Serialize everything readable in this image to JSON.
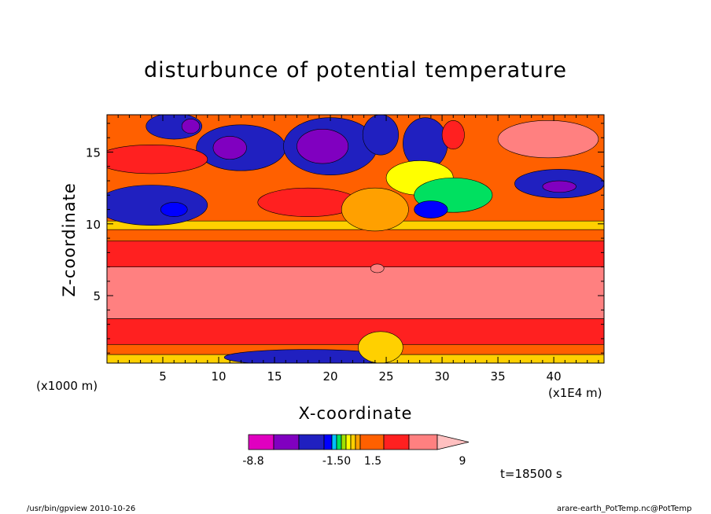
{
  "chart_data": {
    "type": "heatmap",
    "title": "disturbunce of potential temperature",
    "xlabel": "X-coordinate",
    "ylabel": "Z-coordinate",
    "x_unit_label": "(x1000 m)",
    "x_scale_label": "(x1E4 m)",
    "xlim": [
      0,
      44.5
    ],
    "ylim": [
      0.3,
      17.6
    ],
    "xticks": [
      5,
      10,
      15,
      20,
      25,
      30,
      35,
      40
    ],
    "yticks": [
      5,
      10,
      15
    ],
    "time_label": "t=18500 s",
    "colorbar": {
      "labels": [
        "-8.8",
        "-1.50",
        "1.5",
        "9"
      ],
      "colors": [
        "#e000c0",
        "#8000c0",
        "#2020c0",
        "#0000ff",
        "#00c0ff",
        "#00e060",
        "#a0e000",
        "#ffff00",
        "#ffd000",
        "#ffa000",
        "#ff6000",
        "#ff2020",
        "#ff8080",
        "#ffc0c0"
      ]
    },
    "bands": [
      {
        "z0": 0.3,
        "z1": 0.9,
        "value": 1.0
      },
      {
        "z0": 0.9,
        "z1": 1.6,
        "value": 2.5
      },
      {
        "z0": 1.6,
        "z1": 3.4,
        "value": 4.5
      },
      {
        "z0": 3.4,
        "z1": 7.0,
        "value": 8.0
      },
      {
        "z0": 7.0,
        "z1": 8.8,
        "value": 5.0
      },
      {
        "z0": 8.8,
        "z1": 9.6,
        "value": 2.5
      },
      {
        "z0": 9.6,
        "z1": 10.2,
        "value": 1.0
      }
    ],
    "features": [
      {
        "x": 4,
        "z": 11.3,
        "rx": 5,
        "ry": 1.4,
        "value": -4.0
      },
      {
        "x": 6,
        "z": 11.0,
        "rx": 1.2,
        "ry": 0.5,
        "value": -2.0
      },
      {
        "x": 6,
        "z": 16.8,
        "rx": 2.5,
        "ry": 0.9,
        "value": -3.0
      },
      {
        "x": 7.5,
        "z": 16.8,
        "rx": 0.8,
        "ry": 0.5,
        "value": -7.0
      },
      {
        "x": 12,
        "z": 15.3,
        "rx": 4.0,
        "ry": 1.6,
        "value": -3.5
      },
      {
        "x": 11,
        "z": 15.3,
        "rx": 1.5,
        "ry": 0.8,
        "value": -7.0
      },
      {
        "x": 20,
        "z": 15.4,
        "rx": 4.2,
        "ry": 2.0,
        "value": -3.5
      },
      {
        "x": 19.3,
        "z": 15.4,
        "rx": 2.3,
        "ry": 1.2,
        "value": -7.0
      },
      {
        "x": 24.5,
        "z": 16.2,
        "rx": 1.6,
        "ry": 1.4,
        "value": -3.0
      },
      {
        "x": 28.5,
        "z": 15.6,
        "rx": 2.0,
        "ry": 1.8,
        "value": -3.0
      },
      {
        "x": 31,
        "z": 16.2,
        "rx": 1.0,
        "ry": 1.0,
        "value": 5.0
      },
      {
        "x": 39.5,
        "z": 15.9,
        "rx": 4.5,
        "ry": 1.3,
        "value": 8.0
      },
      {
        "x": 40.5,
        "z": 12.8,
        "rx": 4.0,
        "ry": 1.0,
        "value": -3.5
      },
      {
        "x": 40.5,
        "z": 12.6,
        "rx": 1.5,
        "ry": 0.4,
        "value": -7.0
      },
      {
        "x": 4,
        "z": 14.5,
        "rx": 5,
        "ry": 1.0,
        "value": 4.0
      },
      {
        "x": 28,
        "z": 13.2,
        "rx": 3.0,
        "ry": 1.2,
        "value": 0.0
      },
      {
        "x": 31,
        "z": 12.0,
        "rx": 3.5,
        "ry": 1.2,
        "value": -1.0
      },
      {
        "x": 29,
        "z": 11.0,
        "rx": 1.5,
        "ry": 0.6,
        "value": -2.0
      },
      {
        "x": 18,
        "z": 11.5,
        "rx": 4.5,
        "ry": 1.0,
        "value": 4.0
      },
      {
        "x": 24,
        "z": 11.0,
        "rx": 3.0,
        "ry": 1.5,
        "value": 1.5
      },
      {
        "x": 24.2,
        "z": 6.9,
        "rx": 0.6,
        "ry": 0.3,
        "value": 9.0
      },
      {
        "x": 18,
        "z": 0.7,
        "rx": 7.5,
        "ry": 0.55,
        "value": -4.0
      },
      {
        "x": 24.5,
        "z": 1.4,
        "rx": 2.0,
        "ry": 1.1,
        "value": 1.0
      }
    ]
  },
  "footer": {
    "left": "/usr/bin/gpview   2010-10-26",
    "right": "arare-earth_PotTemp.nc@PotTemp"
  }
}
